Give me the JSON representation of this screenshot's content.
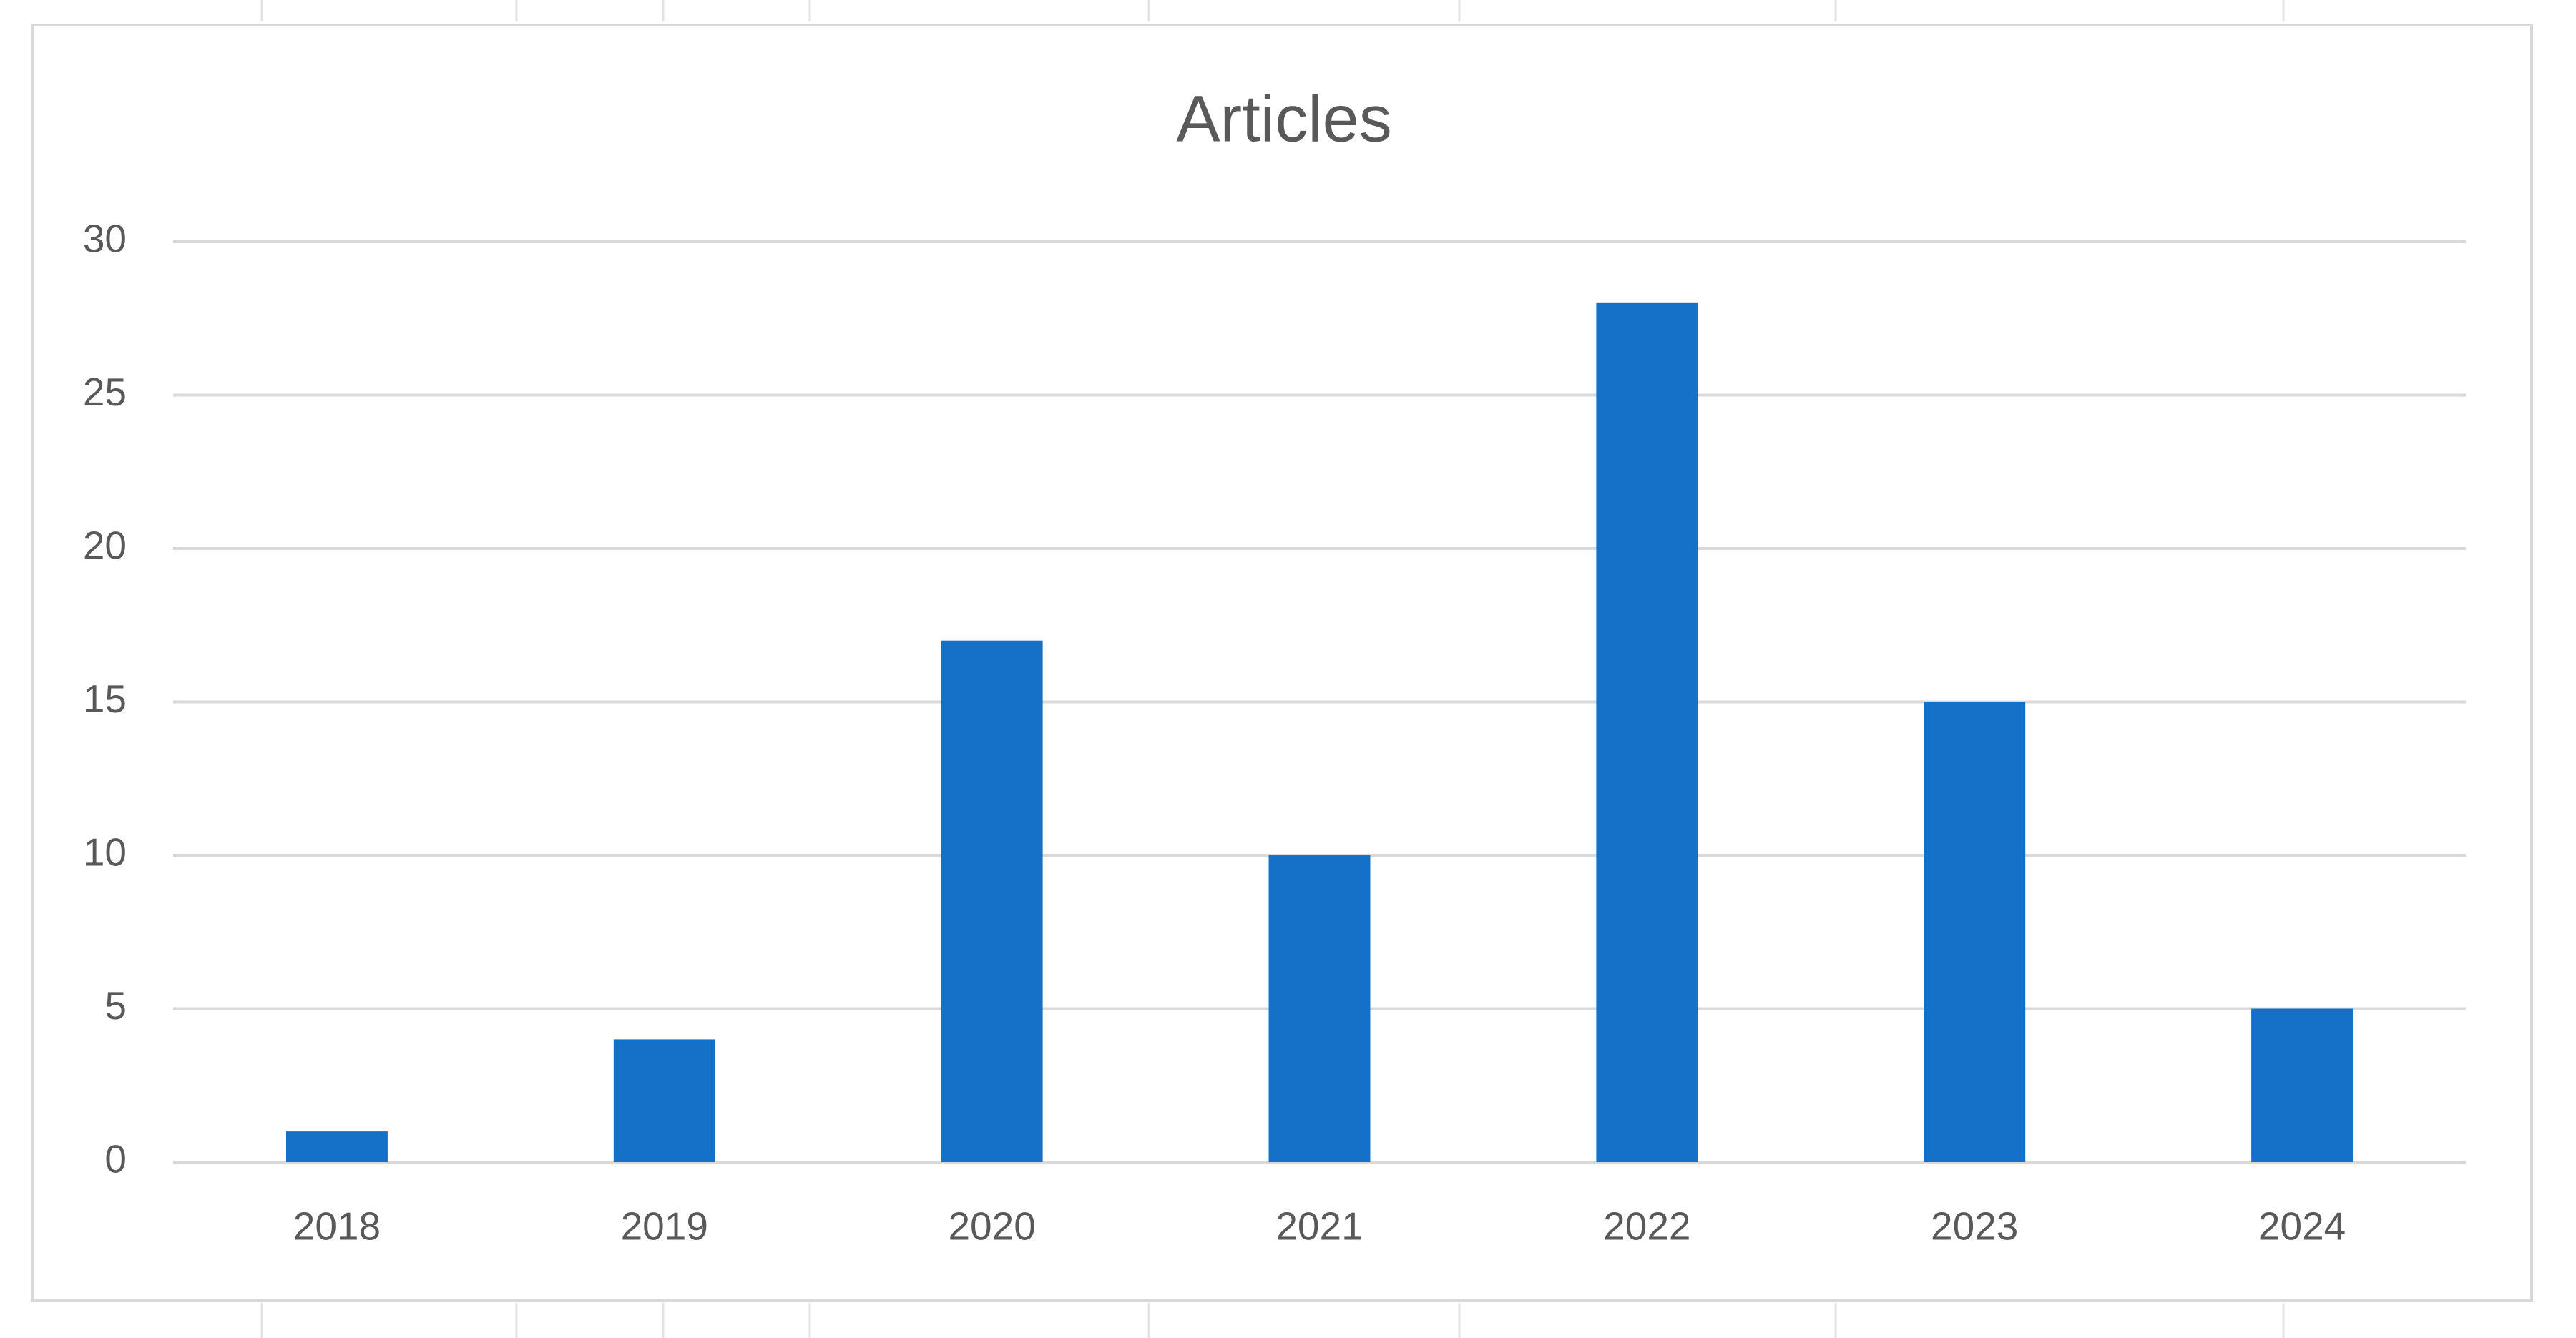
{
  "chart_data": {
    "type": "bar",
    "title": "Articles",
    "categories": [
      "2018",
      "2019",
      "2020",
      "2021",
      "2022",
      "2023",
      "2024"
    ],
    "values": [
      1,
      4,
      17,
      10,
      28,
      15,
      5
    ],
    "color": "#1570c8",
    "ylim": [
      0,
      30
    ],
    "yticks": [
      0,
      5,
      10,
      15,
      20,
      25,
      30
    ],
    "grid": true
  }
}
